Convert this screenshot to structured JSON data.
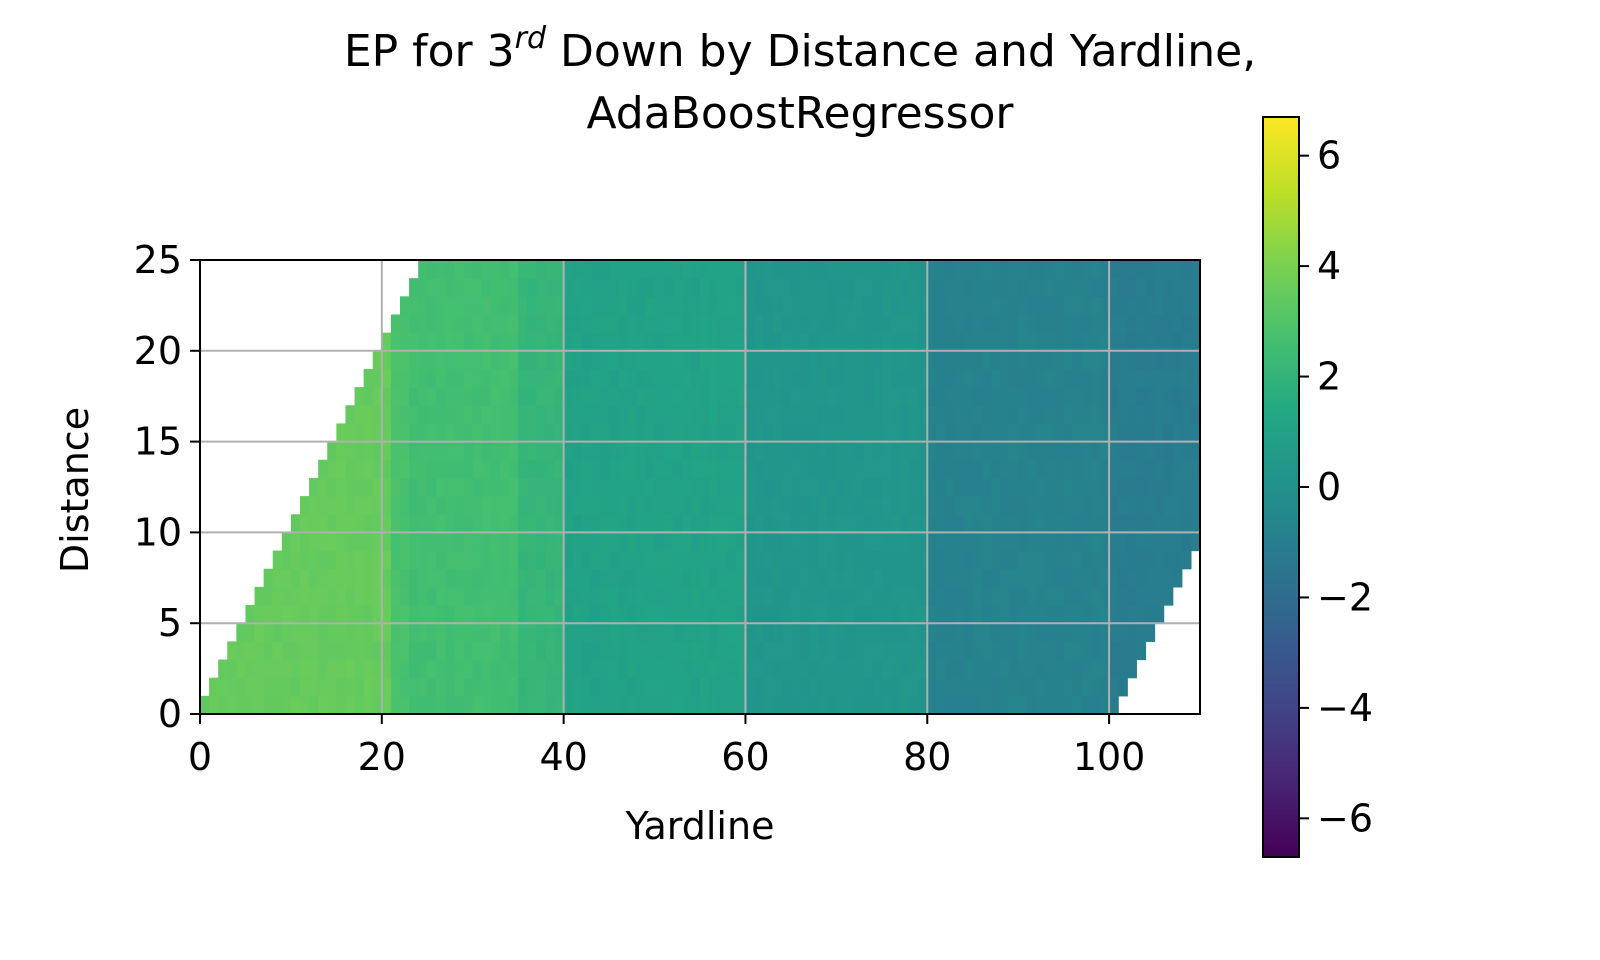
{
  "chart_data": {
    "type": "heatmap",
    "title_prefix": "EP for 3",
    "title_superscript": "rd",
    "title_rest": " Down by Distance and Yardline,",
    "title_line2": "AdaBoostRegressor",
    "xlabel": "Yardline",
    "ylabel": "Distance",
    "xlim": [
      0,
      110
    ],
    "ylim": [
      0,
      25
    ],
    "x_ticks": [
      0,
      20,
      40,
      60,
      80,
      100
    ],
    "y_ticks": [
      0,
      5,
      10,
      15,
      20,
      25
    ],
    "grid": true,
    "colormap": "viridis",
    "colorbar": {
      "vmin": -6.7,
      "vmax": 6.7,
      "ticks": [
        -6,
        -4,
        -2,
        0,
        2,
        4,
        6
      ],
      "tick_labels": [
        "−6",
        "−4",
        "−2",
        "0",
        "2",
        "4",
        "6"
      ]
    },
    "valid_region": "Yardline ≥ Distance and Yardline ≤ Distance + 100",
    "ep_by_yardline_band": [
      {
        "from": 0,
        "to": 21,
        "ep": 3.5
      },
      {
        "from": 21,
        "to": 23,
        "ep": 2.8
      },
      {
        "from": 23,
        "to": 35,
        "ep": 2.6
      },
      {
        "from": 35,
        "to": 40,
        "ep": 2.1
      },
      {
        "from": 40,
        "to": 60,
        "ep": 1.0
      },
      {
        "from": 60,
        "to": 80,
        "ep": 0.3
      },
      {
        "from": 80,
        "to": 100,
        "ep": -0.8
      },
      {
        "from": 100,
        "to": 110,
        "ep": -1.1
      }
    ]
  }
}
